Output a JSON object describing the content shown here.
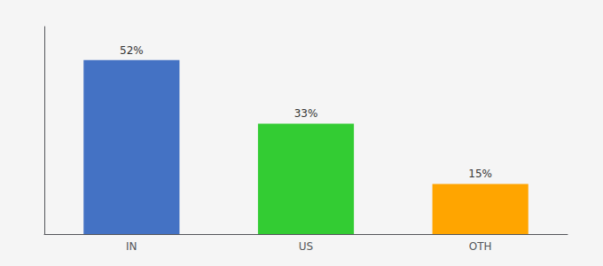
{
  "chart_data": {
    "type": "bar",
    "categories": [
      "IN",
      "US",
      "OTH"
    ],
    "values": [
      52,
      33,
      15
    ],
    "value_labels": [
      "52%",
      "33%",
      "15%"
    ],
    "colors": [
      "#4472C4",
      "#33CC33",
      "#FFA500"
    ],
    "ylim": [
      0,
      62
    ],
    "data_labels": true,
    "tick_labels": "x",
    "grid": false
  }
}
